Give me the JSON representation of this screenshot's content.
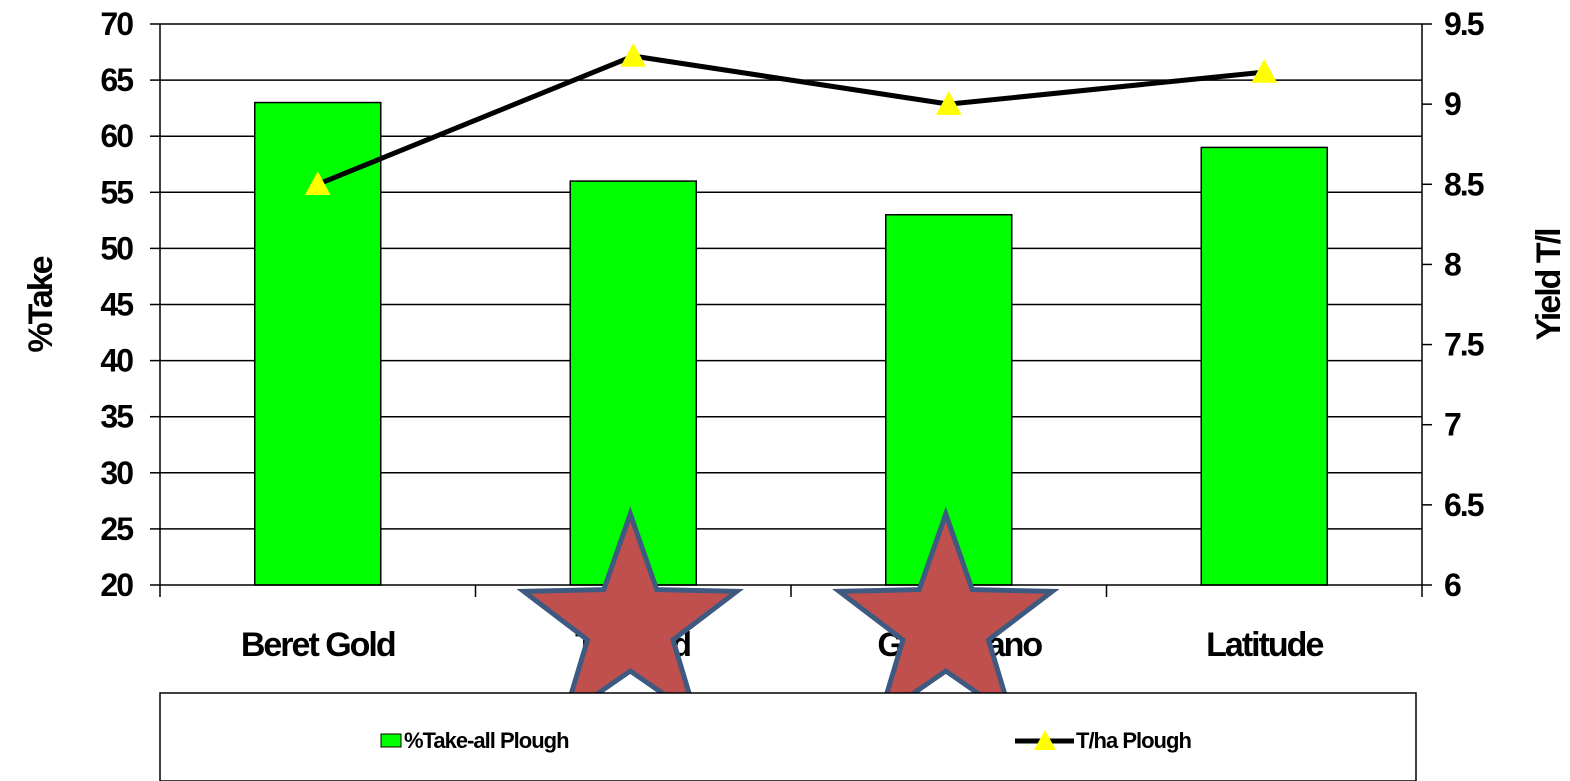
{
  "chart_data": {
    "type": "bar",
    "categories": [
      "Beret Gold",
      "Tr    d",
      "Ga    ano",
      "Latitude"
    ],
    "category_labels_visible": [
      {
        "left": "Beret Gold",
        "right": ""
      },
      {
        "left": "Tr",
        "right": "d"
      },
      {
        "left": "Ga",
        "right": "ano"
      },
      {
        "left": "Latitude",
        "right": ""
      }
    ],
    "series": [
      {
        "name": "%Take-all Plough",
        "type": "bar",
        "axis": "left",
        "values": [
          63,
          56,
          53,
          59
        ],
        "color": "#00ff00"
      },
      {
        "name": "T/ha Plough",
        "type": "line",
        "axis": "right",
        "values": [
          8.5,
          9.3,
          9.0,
          9.2
        ],
        "color": "#000000",
        "marker_color": "#ffff00"
      }
    ],
    "ylabel": "%Take",
    "y2label": "Yield T/l",
    "ylim": [
      20,
      70
    ],
    "yticks": [
      "70",
      "65",
      "60",
      "55",
      "50",
      "45",
      "40",
      "35",
      "30",
      "25",
      "20"
    ],
    "y2lim": [
      6,
      9.5
    ],
    "y2ticks": [
      "9.5",
      "9",
      "8.5",
      "8",
      "7.5",
      "7",
      "6.5",
      "6"
    ],
    "grid": true,
    "legend_position": "bottom",
    "annotations": [
      {
        "type": "star",
        "category_index": 1,
        "color": "#c0504d"
      },
      {
        "type": "star",
        "category_index": 2,
        "color": "#c0504d"
      }
    ]
  }
}
